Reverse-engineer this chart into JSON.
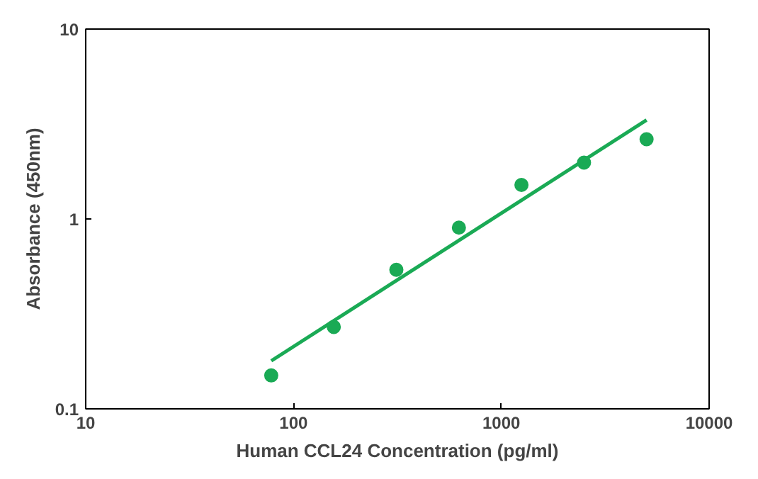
{
  "chart_data": {
    "type": "scatter",
    "xlabel": "Human CCL24 Concentration (pg/ml)",
    "ylabel": "Absorbance (450nm)",
    "log": "xy",
    "grid": false,
    "xlim": [
      10,
      10000
    ],
    "xticks": [
      10,
      100,
      1000,
      10000
    ],
    "ylim": [
      0.1,
      10
    ],
    "yticks": [
      0.1,
      1,
      10
    ],
    "series": [
      {
        "color": "#1aaa55",
        "marker": "circle",
        "x": [
          78.125,
          156.25,
          312.5,
          625,
          1250,
          2500,
          5000
        ],
        "values": [
          0.15,
          0.27,
          0.54,
          0.9,
          1.51,
          1.98,
          2.63
        ]
      },
      {
        "type": "line",
        "color": "#1aaa55",
        "line_style": "solid",
        "marker": "none",
        "x": [
          78.125,
          5000
        ],
        "values": [
          0.179,
          3.32
        ]
      }
    ]
  }
}
